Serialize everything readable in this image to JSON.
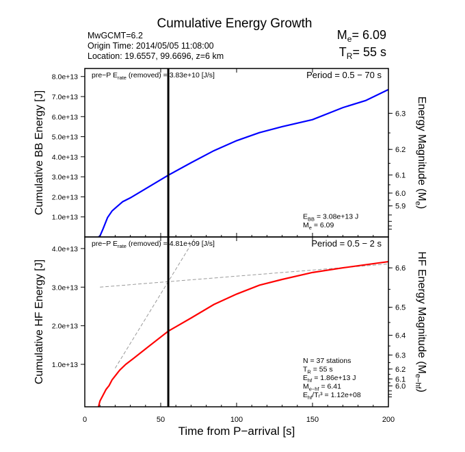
{
  "chart_data": [
    {
      "type": "line",
      "title": "Cumulative Energy Growth",
      "info": [
        "MwGCMT=6.2",
        "Origin Time: 2014/05/05 11:08:00",
        "Location: 19.6557, 99.6696, z=6 km"
      ],
      "summary": {
        "me": "M",
        "me_sub": "e",
        "me_val": "= 6.09",
        "tr": "T",
        "tr_sub": "R",
        "tr_val": "= 55 s"
      },
      "ylabel": "Cumulative BB Energy [J]",
      "y2label": "Energy Magnitude (M",
      "y2label_sub": "e",
      "y2label_end": ")",
      "ylim": [
        0,
        84000000000000.0
      ],
      "xlim": [
        0,
        200
      ],
      "yticks": [
        "1.0e+13",
        "2.0e+13",
        "3.0e+13",
        "4.0e+13",
        "5.0e+13",
        "6.0e+13",
        "7.0e+13",
        "8.0e+13"
      ],
      "y2ticks": [
        "5.9",
        "6.0",
        "6.1",
        "6.2",
        "6.3"
      ],
      "prep": {
        "pre": "pre−P E",
        "sub": "rate",
        "post": " (removed) = 3.83e+10 [J/s]"
      },
      "period": "Period = 0.5 − 70 s",
      "notes": [
        {
          "a": "E",
          "s": "BB",
          "b": " = 3.08e+13 J"
        },
        {
          "a": "M",
          "s": "e",
          "b": " = 6.09"
        }
      ],
      "vline": 55,
      "color": "#0000ff",
      "series": [
        {
          "x": [
            9,
            10,
            12,
            15,
            18,
            21,
            25,
            30,
            40,
            55,
            70,
            85,
            100,
            115,
            130,
            150,
            170,
            185,
            200
          ],
          "y": [
            0,
            500000000000.0,
            4000000000000.0,
            9700000000000.0,
            13000000000000.0,
            15000000000000.0,
            17600000000000.0,
            19500000000000.0,
            24000000000000.0,
            30800000000000.0,
            37000000000000.0,
            43000000000000.0,
            48000000000000.0,
            52000000000000.0,
            55000000000000.0,
            58500000000000.0,
            64500000000000.0,
            68000000000000.0,
            73500000000000.0
          ]
        }
      ]
    },
    {
      "type": "line",
      "ylabel": "Cumulative HF Energy [J]",
      "y2label": "HF Energy Magnitude (M",
      "y2label_sub": "e−hf",
      "y2label_end": ")",
      "xlabel": "Time from P−arrival [s]",
      "ylim": [
        -1000000000000.0,
        43000000000000.0
      ],
      "xlim": [
        0,
        200
      ],
      "xticks": [
        "0",
        "50",
        "100",
        "150",
        "200"
      ],
      "yticks": [
        "1.0e+13",
        "2.0e+13",
        "3.0e+13",
        "4.0e+13"
      ],
      "y2ticks": [
        "6.0",
        "6.1",
        "6.2",
        "6.3",
        "6.4",
        "6.5",
        "6.6"
      ],
      "prep": {
        "pre": "pre−P E",
        "sub": "rate",
        "post": " (removed) = 4.81e+09 [J/s]"
      },
      "period": "Period = 0.5 − 2 s",
      "notes": [
        {
          "a": "N = 37 stations",
          "s": "",
          "b": ""
        },
        {
          "a": "T",
          "s": "R",
          "b": " = 55  s"
        },
        {
          "a": "E",
          "s": "hf",
          "b": " = 1.86e+13 J"
        },
        {
          "a": "M",
          "s": "e−hf",
          "b": " = 6.41"
        },
        {
          "a": "E",
          "s": "hf",
          "b": "/Tᵣ³ =  1.12e+08"
        }
      ],
      "vline": 55,
      "color": "#ff0000",
      "series": [
        {
          "x": [
            9,
            10,
            12,
            14,
            16,
            18,
            20,
            23,
            27,
            32,
            40,
            55,
            70,
            85,
            100,
            115,
            130,
            150,
            170,
            185,
            200
          ],
          "y": [
            -1000000000000.0,
            500000000000.0,
            2000000000000.0,
            3500000000000.0,
            4500000000000.0,
            6000000000000.0,
            7000000000000.0,
            8500000000000.0,
            10000000000000.0,
            11500000000000.0,
            14000000000000.0,
            18600000000000.0,
            22000000000000.0,
            25500000000000.0,
            28200000000000.0,
            30500000000000.0,
            32000000000000.0,
            33800000000000.0,
            35000000000000.0,
            35800000000000.0,
            36600000000000.0
          ]
        }
      ],
      "dashed": [
        {
          "x": [
            10,
            200
          ],
          "y": [
            30000000000000.0,
            36000000000000.0
          ]
        },
        {
          "x": [
            20,
            73
          ],
          "y": [
            9000000000000.0,
            43000000000000.0
          ]
        }
      ]
    }
  ]
}
